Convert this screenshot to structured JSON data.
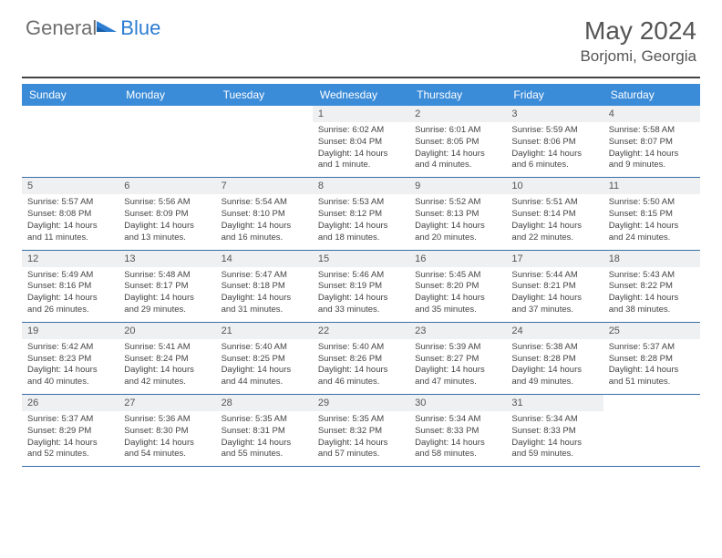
{
  "logo": {
    "text_general": "General",
    "text_blue": "Blue"
  },
  "title": {
    "month": "May 2024",
    "location": "Borjomi, Georgia"
  },
  "colors": {
    "header_bg": "#3a8bd8",
    "header_fg": "#ffffff",
    "daynum_bg": "#eef0f2",
    "daynum_fg": "#555555",
    "body_fg": "#444444",
    "row_divider": "#3a6fa8",
    "logo_gray": "#6e6e6e",
    "logo_blue": "#2d7dd2",
    "page_bg": "#ffffff"
  },
  "typography": {
    "month_title_size_pt": 21,
    "location_size_pt": 13,
    "weekday_size_pt": 9,
    "daynum_size_pt": 8,
    "body_size_pt": 7
  },
  "weekdays": [
    "Sunday",
    "Monday",
    "Tuesday",
    "Wednesday",
    "Thursday",
    "Friday",
    "Saturday"
  ],
  "weeks": [
    [
      {
        "empty": true
      },
      {
        "empty": true
      },
      {
        "empty": true
      },
      {
        "num": "1",
        "sunrise": "Sunrise: 6:02 AM",
        "sunset": "Sunset: 8:04 PM",
        "daylight": "Daylight: 14 hours and 1 minute."
      },
      {
        "num": "2",
        "sunrise": "Sunrise: 6:01 AM",
        "sunset": "Sunset: 8:05 PM",
        "daylight": "Daylight: 14 hours and 4 minutes."
      },
      {
        "num": "3",
        "sunrise": "Sunrise: 5:59 AM",
        "sunset": "Sunset: 8:06 PM",
        "daylight": "Daylight: 14 hours and 6 minutes."
      },
      {
        "num": "4",
        "sunrise": "Sunrise: 5:58 AM",
        "sunset": "Sunset: 8:07 PM",
        "daylight": "Daylight: 14 hours and 9 minutes."
      }
    ],
    [
      {
        "num": "5",
        "sunrise": "Sunrise: 5:57 AM",
        "sunset": "Sunset: 8:08 PM",
        "daylight": "Daylight: 14 hours and 11 minutes."
      },
      {
        "num": "6",
        "sunrise": "Sunrise: 5:56 AM",
        "sunset": "Sunset: 8:09 PM",
        "daylight": "Daylight: 14 hours and 13 minutes."
      },
      {
        "num": "7",
        "sunrise": "Sunrise: 5:54 AM",
        "sunset": "Sunset: 8:10 PM",
        "daylight": "Daylight: 14 hours and 16 minutes."
      },
      {
        "num": "8",
        "sunrise": "Sunrise: 5:53 AM",
        "sunset": "Sunset: 8:12 PM",
        "daylight": "Daylight: 14 hours and 18 minutes."
      },
      {
        "num": "9",
        "sunrise": "Sunrise: 5:52 AM",
        "sunset": "Sunset: 8:13 PM",
        "daylight": "Daylight: 14 hours and 20 minutes."
      },
      {
        "num": "10",
        "sunrise": "Sunrise: 5:51 AM",
        "sunset": "Sunset: 8:14 PM",
        "daylight": "Daylight: 14 hours and 22 minutes."
      },
      {
        "num": "11",
        "sunrise": "Sunrise: 5:50 AM",
        "sunset": "Sunset: 8:15 PM",
        "daylight": "Daylight: 14 hours and 24 minutes."
      }
    ],
    [
      {
        "num": "12",
        "sunrise": "Sunrise: 5:49 AM",
        "sunset": "Sunset: 8:16 PM",
        "daylight": "Daylight: 14 hours and 26 minutes."
      },
      {
        "num": "13",
        "sunrise": "Sunrise: 5:48 AM",
        "sunset": "Sunset: 8:17 PM",
        "daylight": "Daylight: 14 hours and 29 minutes."
      },
      {
        "num": "14",
        "sunrise": "Sunrise: 5:47 AM",
        "sunset": "Sunset: 8:18 PM",
        "daylight": "Daylight: 14 hours and 31 minutes."
      },
      {
        "num": "15",
        "sunrise": "Sunrise: 5:46 AM",
        "sunset": "Sunset: 8:19 PM",
        "daylight": "Daylight: 14 hours and 33 minutes."
      },
      {
        "num": "16",
        "sunrise": "Sunrise: 5:45 AM",
        "sunset": "Sunset: 8:20 PM",
        "daylight": "Daylight: 14 hours and 35 minutes."
      },
      {
        "num": "17",
        "sunrise": "Sunrise: 5:44 AM",
        "sunset": "Sunset: 8:21 PM",
        "daylight": "Daylight: 14 hours and 37 minutes."
      },
      {
        "num": "18",
        "sunrise": "Sunrise: 5:43 AM",
        "sunset": "Sunset: 8:22 PM",
        "daylight": "Daylight: 14 hours and 38 minutes."
      }
    ],
    [
      {
        "num": "19",
        "sunrise": "Sunrise: 5:42 AM",
        "sunset": "Sunset: 8:23 PM",
        "daylight": "Daylight: 14 hours and 40 minutes."
      },
      {
        "num": "20",
        "sunrise": "Sunrise: 5:41 AM",
        "sunset": "Sunset: 8:24 PM",
        "daylight": "Daylight: 14 hours and 42 minutes."
      },
      {
        "num": "21",
        "sunrise": "Sunrise: 5:40 AM",
        "sunset": "Sunset: 8:25 PM",
        "daylight": "Daylight: 14 hours and 44 minutes."
      },
      {
        "num": "22",
        "sunrise": "Sunrise: 5:40 AM",
        "sunset": "Sunset: 8:26 PM",
        "daylight": "Daylight: 14 hours and 46 minutes."
      },
      {
        "num": "23",
        "sunrise": "Sunrise: 5:39 AM",
        "sunset": "Sunset: 8:27 PM",
        "daylight": "Daylight: 14 hours and 47 minutes."
      },
      {
        "num": "24",
        "sunrise": "Sunrise: 5:38 AM",
        "sunset": "Sunset: 8:28 PM",
        "daylight": "Daylight: 14 hours and 49 minutes."
      },
      {
        "num": "25",
        "sunrise": "Sunrise: 5:37 AM",
        "sunset": "Sunset: 8:28 PM",
        "daylight": "Daylight: 14 hours and 51 minutes."
      }
    ],
    [
      {
        "num": "26",
        "sunrise": "Sunrise: 5:37 AM",
        "sunset": "Sunset: 8:29 PM",
        "daylight": "Daylight: 14 hours and 52 minutes."
      },
      {
        "num": "27",
        "sunrise": "Sunrise: 5:36 AM",
        "sunset": "Sunset: 8:30 PM",
        "daylight": "Daylight: 14 hours and 54 minutes."
      },
      {
        "num": "28",
        "sunrise": "Sunrise: 5:35 AM",
        "sunset": "Sunset: 8:31 PM",
        "daylight": "Daylight: 14 hours and 55 minutes."
      },
      {
        "num": "29",
        "sunrise": "Sunrise: 5:35 AM",
        "sunset": "Sunset: 8:32 PM",
        "daylight": "Daylight: 14 hours and 57 minutes."
      },
      {
        "num": "30",
        "sunrise": "Sunrise: 5:34 AM",
        "sunset": "Sunset: 8:33 PM",
        "daylight": "Daylight: 14 hours and 58 minutes."
      },
      {
        "num": "31",
        "sunrise": "Sunrise: 5:34 AM",
        "sunset": "Sunset: 8:33 PM",
        "daylight": "Daylight: 14 hours and 59 minutes."
      },
      {
        "empty": true
      }
    ]
  ]
}
